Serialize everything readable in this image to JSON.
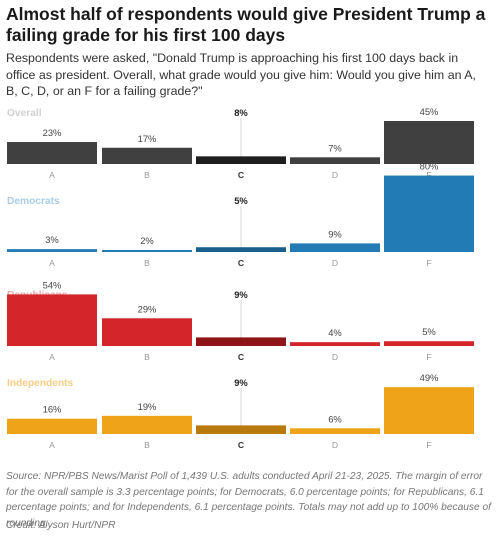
{
  "title": "Almost half of respondents would give President Trump a failing grade for his first 100 days",
  "subtitle": "Respondents were asked, \"Donald Trump is approaching his first 100 days back in office as president. Overall, what grade would you give him: Would you give him an A, B, C, D, or an F for a failing grade?\"",
  "source": "Source: NPR/PBS News/Marist Poll of 1,439 U.S. adults conducted April 21-23, 2025. The margin of error for the overall sample is 3.3 percentage points; for Democrats, 6.0 percentage points; for Republicans, 6.1 percentage points; and for Independents, 6.1 percentage points. Totals may not add up to 100% because of rounding.",
  "credit": "Credit: Alyson Hurt/NPR",
  "chart_data": {
    "type": "bar",
    "categories": [
      "A",
      "B",
      "C",
      "D",
      "F"
    ],
    "value_format": "{v}%",
    "ylim": [
      0,
      80
    ],
    "highlight_category": "C",
    "series": [
      {
        "name": "Overall",
        "values": [
          23,
          17,
          8,
          7,
          45
        ],
        "color": "#404040",
        "label_color": "#d0d0d0",
        "c_color": "#1e1e1e"
      },
      {
        "name": "Democrats",
        "values": [
          3,
          2,
          5,
          9,
          80
        ],
        "color": "#237bb5",
        "label_color": "#a9cde8",
        "c_color": "#1b5f8e"
      },
      {
        "name": "Republicans",
        "values": [
          54,
          29,
          9,
          4,
          5
        ],
        "color": "#d3252a",
        "label_color": "#f0a8aa",
        "c_color": "#8e1418"
      },
      {
        "name": "Independents",
        "values": [
          16,
          19,
          9,
          6,
          49
        ],
        "color": "#eea318",
        "label_color": "#f6cd84",
        "c_color": "#b87a0c"
      }
    ]
  }
}
